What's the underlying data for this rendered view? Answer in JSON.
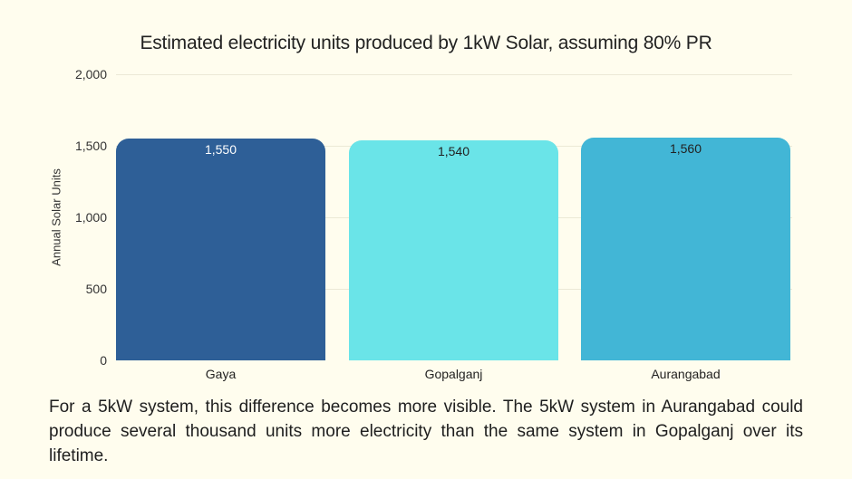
{
  "chart_data": {
    "type": "bar",
    "title": "Estimated electricity units produced by 1kW Solar, assuming 80% PR",
    "xlabel": "",
    "ylabel": "Annual Solar Units",
    "categories": [
      "Gaya",
      "Gopalganj",
      "Aurangabad"
    ],
    "values": [
      1550,
      1540,
      1560
    ],
    "value_labels": [
      "1,550",
      "1,540",
      "1,560"
    ],
    "bar_colors": [
      "#2e5f97",
      "#6ae4e8",
      "#42b6d6"
    ],
    "value_label_colors": [
      "#ffffff",
      "#222222",
      "#222222"
    ],
    "ylim": [
      0,
      2000
    ],
    "yticks": [
      0,
      500,
      1000,
      1500,
      2000
    ],
    "ytick_labels": [
      "0",
      "500",
      "1,000",
      "1,500",
      "2,000"
    ],
    "grid": true,
    "legend": null
  },
  "caption": "For a 5kW system, this difference becomes more visible. The 5kW system in Aurangabad could produce several thousand units more electricity than the same system in Gopalganj over its lifetime."
}
